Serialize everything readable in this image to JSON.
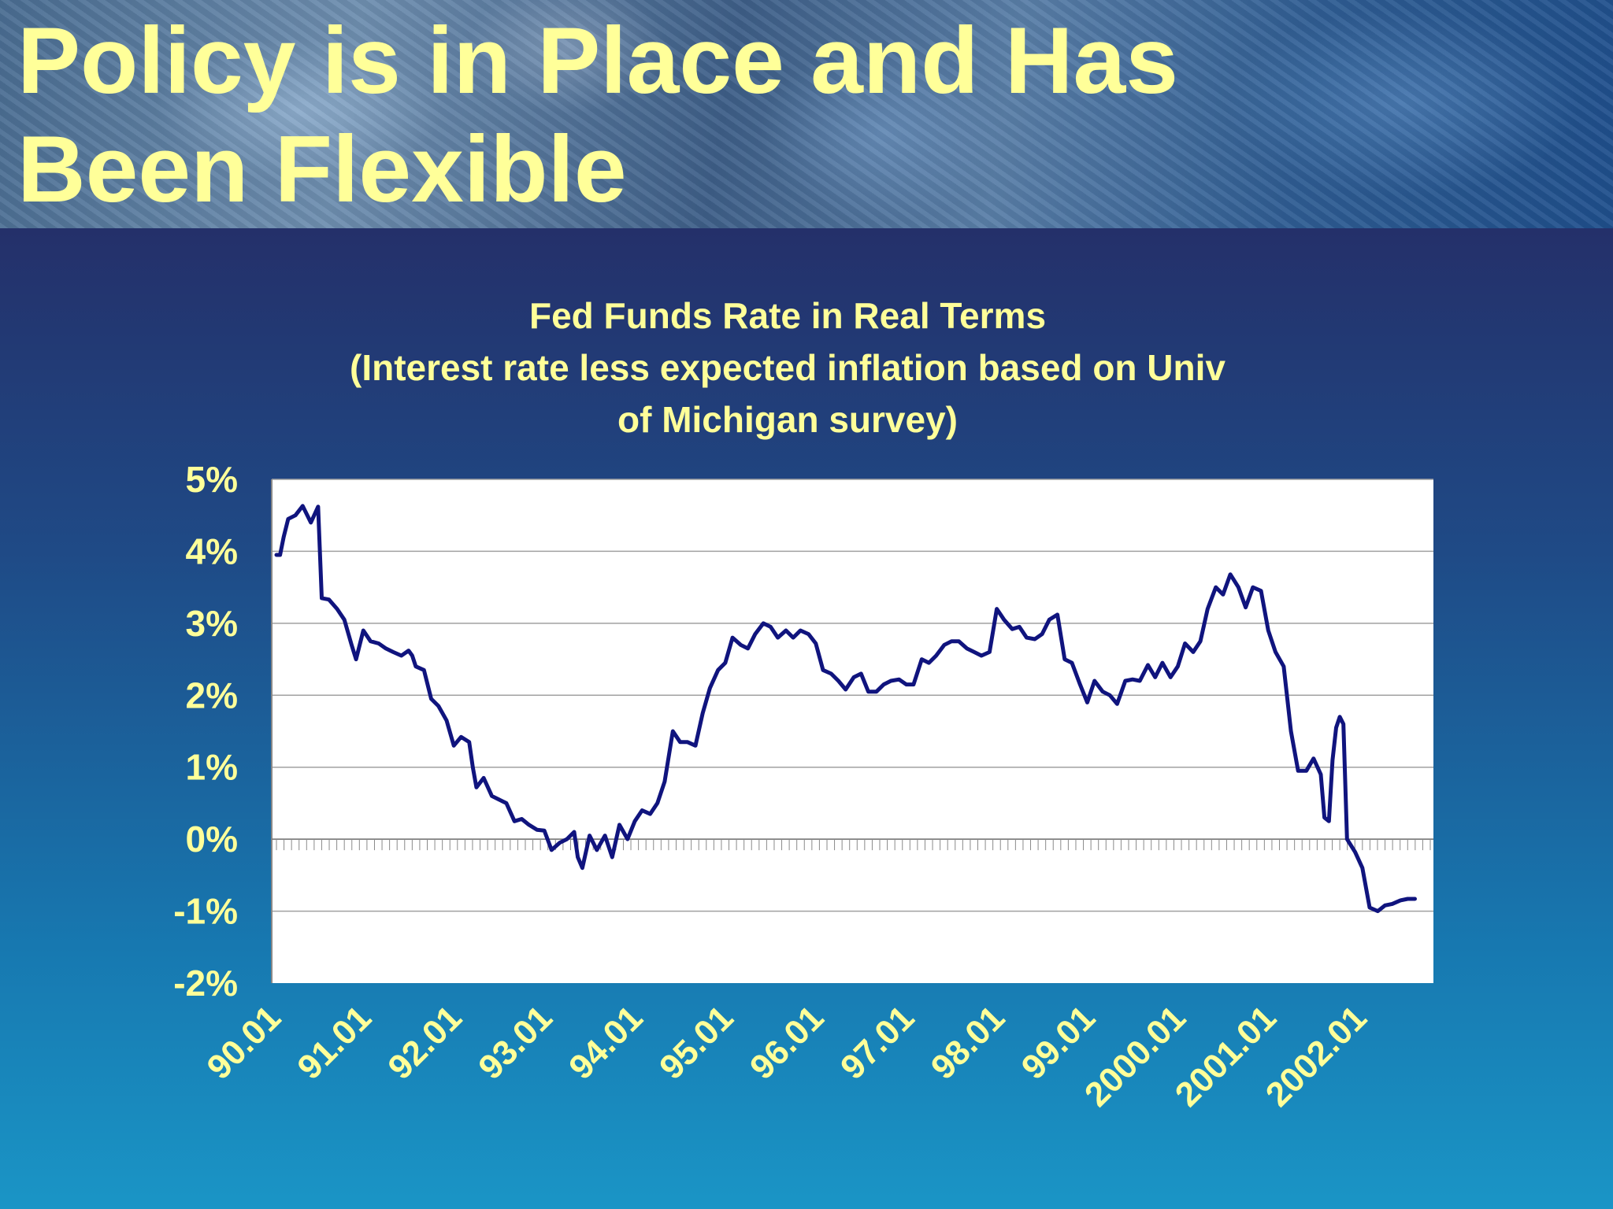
{
  "slide": {
    "title": "Policy is in Place and Has\nBeen Flexible"
  },
  "chart_data": {
    "type": "line",
    "title_lines": [
      "Fed Funds Rate in Real Terms",
      "(Interest rate less expected inflation based on Univ",
      "of Michigan survey)"
    ],
    "xlabel": "",
    "ylabel": "",
    "ylim": [
      -2,
      5
    ],
    "y_ticks": [
      5,
      4,
      3,
      2,
      1,
      0,
      -1,
      -2
    ],
    "y_tick_labels": [
      "5%",
      "4%",
      "3%",
      "2%",
      "1%",
      "0%",
      "-1%",
      "-2%"
    ],
    "x_tick_labels": [
      "90.01",
      "91.01",
      "92.01",
      "93.01",
      "94.01",
      "95.01",
      "96.01",
      "97.01",
      "98.01",
      "99.01",
      "2000.01",
      "2001.01",
      "2002.01"
    ],
    "grid": true,
    "legend": "none",
    "colors": {
      "line": "#10147e",
      "plot_bg": "#ffffff",
      "grid": "#a0a0a0",
      "text": "#ffff99"
    },
    "series": [
      {
        "points": [
          [
            1990.0,
            3.95
          ],
          [
            1990.04,
            3.95
          ],
          [
            1990.08,
            4.2
          ],
          [
            1990.13,
            4.45
          ],
          [
            1990.21,
            4.5
          ],
          [
            1990.29,
            4.63
          ],
          [
            1990.38,
            4.4
          ],
          [
            1990.46,
            4.62
          ],
          [
            1990.5,
            3.35
          ],
          [
            1990.58,
            3.33
          ],
          [
            1990.67,
            3.2
          ],
          [
            1990.75,
            3.05
          ],
          [
            1990.83,
            2.7
          ],
          [
            1990.88,
            2.5
          ],
          [
            1990.96,
            2.9
          ],
          [
            1991.04,
            2.75
          ],
          [
            1991.13,
            2.72
          ],
          [
            1991.21,
            2.65
          ],
          [
            1991.29,
            2.6
          ],
          [
            1991.38,
            2.55
          ],
          [
            1991.46,
            2.62
          ],
          [
            1991.5,
            2.55
          ],
          [
            1991.54,
            2.4
          ],
          [
            1991.63,
            2.35
          ],
          [
            1991.71,
            1.95
          ],
          [
            1991.79,
            1.85
          ],
          [
            1991.88,
            1.65
          ],
          [
            1991.96,
            1.3
          ],
          [
            1992.04,
            1.42
          ],
          [
            1992.13,
            1.35
          ],
          [
            1992.17,
            1.0
          ],
          [
            1992.21,
            0.72
          ],
          [
            1992.29,
            0.85
          ],
          [
            1992.38,
            0.6
          ],
          [
            1992.46,
            0.55
          ],
          [
            1992.54,
            0.5
          ],
          [
            1992.63,
            0.25
          ],
          [
            1992.71,
            0.28
          ],
          [
            1992.79,
            0.2
          ],
          [
            1992.88,
            0.13
          ],
          [
            1992.96,
            0.12
          ],
          [
            1993.04,
            -0.15
          ],
          [
            1993.13,
            -0.05
          ],
          [
            1993.21,
            0.0
          ],
          [
            1993.29,
            0.1
          ],
          [
            1993.33,
            -0.25
          ],
          [
            1993.38,
            -0.4
          ],
          [
            1993.46,
            0.05
          ],
          [
            1993.54,
            -0.15
          ],
          [
            1993.63,
            0.05
          ],
          [
            1993.71,
            -0.25
          ],
          [
            1993.79,
            0.2
          ],
          [
            1993.88,
            0.0
          ],
          [
            1993.96,
            0.25
          ],
          [
            1994.04,
            0.4
          ],
          [
            1994.13,
            0.35
          ],
          [
            1994.21,
            0.5
          ],
          [
            1994.29,
            0.8
          ],
          [
            1994.38,
            1.5
          ],
          [
            1994.46,
            1.35
          ],
          [
            1994.54,
            1.35
          ],
          [
            1994.63,
            1.3
          ],
          [
            1994.71,
            1.75
          ],
          [
            1994.79,
            2.1
          ],
          [
            1994.88,
            2.35
          ],
          [
            1994.96,
            2.45
          ],
          [
            1995.04,
            2.8
          ],
          [
            1995.13,
            2.7
          ],
          [
            1995.21,
            2.65
          ],
          [
            1995.29,
            2.85
          ],
          [
            1995.38,
            3.0
          ],
          [
            1995.46,
            2.95
          ],
          [
            1995.54,
            2.8
          ],
          [
            1995.63,
            2.9
          ],
          [
            1995.71,
            2.8
          ],
          [
            1995.79,
            2.9
          ],
          [
            1995.88,
            2.85
          ],
          [
            1995.96,
            2.72
          ],
          [
            1996.04,
            2.35
          ],
          [
            1996.13,
            2.3
          ],
          [
            1996.21,
            2.2
          ],
          [
            1996.29,
            2.08
          ],
          [
            1996.38,
            2.25
          ],
          [
            1996.46,
            2.3
          ],
          [
            1996.54,
            2.05
          ],
          [
            1996.63,
            2.05
          ],
          [
            1996.71,
            2.15
          ],
          [
            1996.79,
            2.2
          ],
          [
            1996.88,
            2.22
          ],
          [
            1996.96,
            2.15
          ],
          [
            1997.04,
            2.15
          ],
          [
            1997.13,
            2.5
          ],
          [
            1997.21,
            2.45
          ],
          [
            1997.29,
            2.55
          ],
          [
            1997.38,
            2.7
          ],
          [
            1997.46,
            2.75
          ],
          [
            1997.54,
            2.75
          ],
          [
            1997.63,
            2.65
          ],
          [
            1997.71,
            2.6
          ],
          [
            1997.79,
            2.55
          ],
          [
            1997.88,
            2.6
          ],
          [
            1997.96,
            3.2
          ],
          [
            1998.04,
            3.05
          ],
          [
            1998.13,
            2.92
          ],
          [
            1998.21,
            2.95
          ],
          [
            1998.29,
            2.8
          ],
          [
            1998.38,
            2.78
          ],
          [
            1998.46,
            2.85
          ],
          [
            1998.54,
            3.05
          ],
          [
            1998.63,
            3.12
          ],
          [
            1998.71,
            2.5
          ],
          [
            1998.79,
            2.45
          ],
          [
            1998.88,
            2.15
          ],
          [
            1998.96,
            1.9
          ],
          [
            1999.04,
            2.2
          ],
          [
            1999.13,
            2.05
          ],
          [
            1999.21,
            2.0
          ],
          [
            1999.29,
            1.88
          ],
          [
            1999.38,
            2.2
          ],
          [
            1999.46,
            2.22
          ],
          [
            1999.54,
            2.2
          ],
          [
            1999.63,
            2.42
          ],
          [
            1999.71,
            2.25
          ],
          [
            1999.79,
            2.45
          ],
          [
            1999.88,
            2.25
          ],
          [
            1999.96,
            2.4
          ],
          [
            2000.04,
            2.72
          ],
          [
            2000.13,
            2.6
          ],
          [
            2000.21,
            2.75
          ],
          [
            2000.29,
            3.2
          ],
          [
            2000.38,
            3.5
          ],
          [
            2000.46,
            3.4
          ],
          [
            2000.54,
            3.68
          ],
          [
            2000.63,
            3.5
          ],
          [
            2000.71,
            3.22
          ],
          [
            2000.79,
            3.5
          ],
          [
            2000.88,
            3.45
          ],
          [
            2000.96,
            2.9
          ],
          [
            2001.04,
            2.6
          ],
          [
            2001.13,
            2.4
          ],
          [
            2001.21,
            1.5
          ],
          [
            2001.29,
            0.95
          ],
          [
            2001.38,
            0.95
          ],
          [
            2001.46,
            1.12
          ],
          [
            2001.54,
            0.9
          ],
          [
            2001.58,
            0.3
          ],
          [
            2001.63,
            0.25
          ],
          [
            2001.67,
            1.1
          ],
          [
            2001.71,
            1.55
          ],
          [
            2001.75,
            1.7
          ],
          [
            2001.79,
            1.6
          ],
          [
            2001.83,
            0.0
          ],
          [
            2001.92,
            -0.18
          ],
          [
            2002.0,
            -0.4
          ],
          [
            2002.08,
            -0.95
          ],
          [
            2002.17,
            -1.0
          ],
          [
            2002.25,
            -0.92
          ],
          [
            2002.33,
            -0.9
          ],
          [
            2002.42,
            -0.85
          ],
          [
            2002.5,
            -0.83
          ],
          [
            2002.58,
            -0.83
          ]
        ]
      }
    ]
  }
}
